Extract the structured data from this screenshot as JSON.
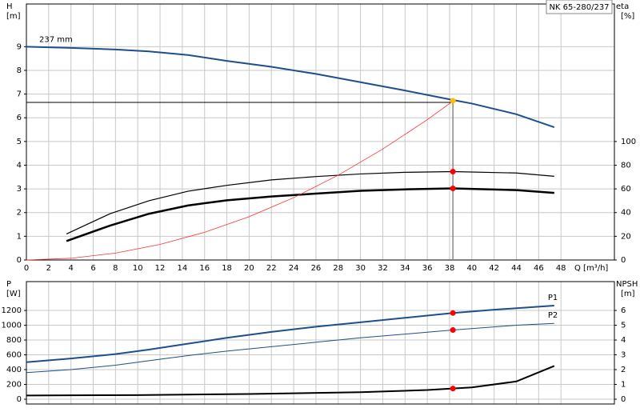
{
  "chart_data": [
    {
      "type": "line",
      "title": "NK 65-280/237",
      "ylabel": "H",
      "yunit": "[m]",
      "y2label": "eta",
      "y2unit": "[%]",
      "xlabel": "Q [m³/h]",
      "xlim": [
        0,
        52.8
      ],
      "xticks": [
        0,
        2,
        4,
        6,
        8,
        10,
        12,
        14,
        16,
        18,
        20,
        22,
        24,
        26,
        28,
        30,
        32,
        34,
        36,
        38,
        40,
        42,
        44,
        46,
        48
      ],
      "ylim": [
        0,
        10.8
      ],
      "yticks": [
        0,
        1,
        2,
        3,
        4,
        5,
        6,
        7,
        8,
        9
      ],
      "y2lim": [
        0,
        216
      ],
      "y2ticks": [
        0,
        20,
        40,
        60,
        80,
        100
      ],
      "grid": true,
      "show_xtick_labels": true,
      "series": [
        {
          "name": "237 mm",
          "label_pos": "start",
          "color": "#1f4e8c",
          "width": 2,
          "x": [
            0,
            4,
            8,
            11,
            14.5,
            18,
            22,
            26,
            30,
            34,
            38.3,
            40,
            44,
            47.4
          ],
          "values": [
            9.0,
            8.95,
            8.88,
            8.8,
            8.65,
            8.4,
            8.15,
            7.85,
            7.5,
            7.15,
            6.75,
            6.6,
            6.15,
            5.6
          ]
        },
        {
          "color": "#000000",
          "width": 1.2,
          "axis": "y2",
          "x": [
            3.6,
            7.5,
            11,
            14.5,
            18,
            22,
            26,
            30,
            34,
            38.3,
            44,
            47.4
          ],
          "values": [
            22,
            39,
            50,
            58,
            63,
            67.6,
            70.4,
            72.6,
            74,
            74.6,
            73.4,
            70.6
          ]
        },
        {
          "color": "#000000",
          "width": 2.5,
          "axis": "y2",
          "x": [
            3.6,
            7.5,
            11,
            14.5,
            18,
            22,
            26,
            30,
            34,
            38.3,
            44,
            47.4
          ],
          "values": [
            16,
            29,
            39,
            46,
            50.4,
            53.6,
            56,
            58.4,
            59.6,
            60.4,
            59,
            56.6
          ]
        },
        {
          "color": "#ff3030",
          "width": 0.8,
          "x": [
            0,
            4,
            8,
            12,
            16,
            20,
            24,
            28,
            32,
            36,
            38.3
          ],
          "values": [
            0,
            0.073,
            0.292,
            0.658,
            1.169,
            1.827,
            2.63,
            3.58,
            4.68,
            5.92,
            6.7
          ]
        }
      ],
      "duty": {
        "x": 38.3,
        "y": 6.65
      },
      "markers": [
        {
          "x": 38.3,
          "y": 6.72,
          "color": "#ffc000"
        },
        {
          "x": 38.3,
          "y": 74.6,
          "color": "#ff0000",
          "axis": "y2"
        },
        {
          "x": 38.3,
          "y": 60.4,
          "color": "#ff0000",
          "axis": "y2"
        }
      ]
    },
    {
      "type": "line",
      "ylabel": "P",
      "yunit": "[W]",
      "y2label": "NPSH",
      "y2unit": "[m]",
      "xlim": [
        0,
        52.8
      ],
      "xticks": [
        0,
        2,
        4,
        6,
        8,
        10,
        12,
        14,
        16,
        18,
        20,
        22,
        24,
        26,
        28,
        30,
        32,
        34,
        36,
        38,
        40,
        42,
        44,
        46,
        48
      ],
      "ylim": [
        -65,
        1590
      ],
      "yticks": [
        0,
        200,
        400,
        600,
        800,
        1000,
        1200
      ],
      "y2lim": [
        -0.325,
        7.95
      ],
      "y2ticks": [
        0,
        1,
        2,
        3,
        4,
        5,
        6
      ],
      "grid": true,
      "show_xtick_labels": false,
      "series": [
        {
          "name": "P1",
          "label_pos": "end",
          "color": "#1f4e8c",
          "width": 2,
          "x": [
            0,
            4,
            8,
            11,
            14.5,
            18,
            22,
            26,
            30,
            34,
            38.3,
            42,
            47.4
          ],
          "values": [
            500,
            550,
            610,
            670,
            750,
            830,
            910,
            980,
            1040,
            1100,
            1165,
            1210,
            1265
          ]
        },
        {
          "name": "P2",
          "label_pos": "end",
          "color": "#1f4e8c",
          "width": 1,
          "x": [
            0,
            4,
            8,
            11,
            14.5,
            18,
            22,
            26,
            30,
            34,
            38.3,
            44,
            47.4
          ],
          "values": [
            360,
            400,
            460,
            520,
            590,
            650,
            710,
            770,
            830,
            880,
            935,
            1000,
            1025
          ]
        },
        {
          "color": "#000000",
          "width": 2,
          "axis": "y2",
          "x": [
            0,
            4,
            10,
            20,
            30,
            36,
            38.3,
            40,
            44,
            47.4
          ],
          "values": [
            0.25,
            0.26,
            0.28,
            0.35,
            0.47,
            0.62,
            0.72,
            0.8,
            1.2,
            2.25
          ]
        }
      ],
      "markers": [
        {
          "x": 38.3,
          "y": 1165,
          "color": "#ff0000"
        },
        {
          "x": 38.3,
          "y": 935,
          "color": "#ff0000"
        },
        {
          "x": 38.3,
          "y": 0.72,
          "color": "#ff0000",
          "axis": "y2"
        }
      ]
    }
  ]
}
